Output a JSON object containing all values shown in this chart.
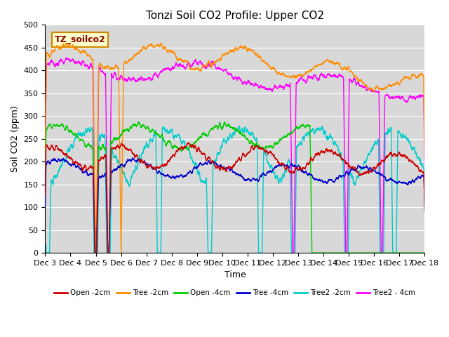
{
  "title": "Tonzi Soil CO2 Profile: Upper CO2",
  "xlabel": "Time",
  "ylabel": "Soil CO2 (ppm)",
  "ylim": [
    0,
    500
  ],
  "xtick_labels": [
    "Dec 3",
    "Dec 4",
    "Dec 5",
    "Dec 6",
    "Dec 7",
    "Dec 8",
    "Dec 9",
    "Dec 10",
    "Dec 11",
    "Dec 12",
    "Dec 13",
    "Dec 14",
    "Dec 15",
    "Dec 16",
    "Dec 17",
    "Dec 18"
  ],
  "label_box_text": "TZ_soilco2",
  "label_box_bg": "#ffffcc",
  "label_box_edge": "#cc0000",
  "background_color": "#d8d8d8",
  "legend_entries": [
    "Open -2cm",
    "Tree -2cm",
    "Open -4cm",
    "Tree -4cm",
    "Tree2 -2cm",
    "Tree2 - 4cm"
  ],
  "line_colors": [
    "#cc0000",
    "#ff8c00",
    "#00cc00",
    "#0000cc",
    "#00cccc",
    "#ff00ff"
  ]
}
